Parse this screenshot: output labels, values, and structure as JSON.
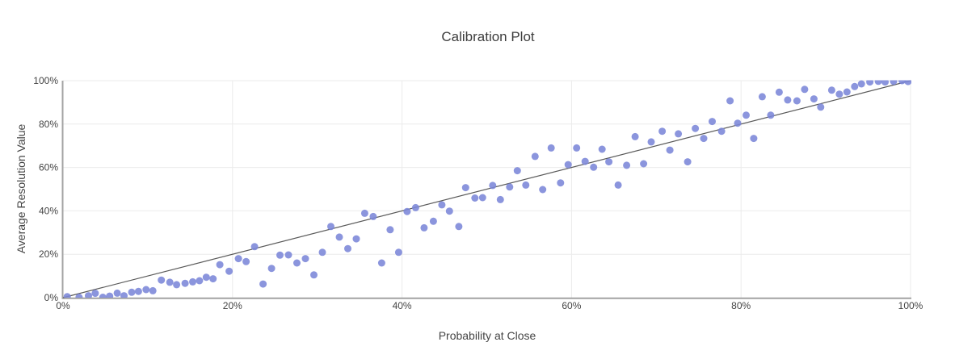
{
  "page": {
    "background": "#ffffff",
    "text_color": "#444444"
  },
  "chart_data": {
    "type": "scatter",
    "title": "Calibration Plot",
    "xlabel": "Probability at Close",
    "ylabel": "Average Resolution Value",
    "xlim": [
      0,
      100
    ],
    "ylim": [
      0,
      100
    ],
    "grid": true,
    "legend": "none",
    "x_ticks": {
      "values": [
        0,
        20,
        40,
        60,
        80,
        100
      ],
      "labels": [
        "0%",
        "20%",
        "40%",
        "60%",
        "80%",
        "100%"
      ]
    },
    "y_ticks": {
      "values": [
        0,
        20,
        40,
        60,
        80,
        100
      ],
      "labels": [
        "0%",
        "20%",
        "40%",
        "60%",
        "80%",
        "100%"
      ]
    },
    "colors": {
      "marker": "#7B86D8",
      "marker_opacity": 0.88,
      "reference_line": "#595959",
      "axis_line": "#a3a3a3",
      "gridline": "#ebebeb",
      "text": "#444444"
    },
    "marker_radius": 4.5,
    "reference_line": {
      "from": [
        0,
        0
      ],
      "to": [
        100,
        100
      ]
    },
    "points": [
      [
        0.5,
        0.5
      ],
      [
        1.9,
        0.2
      ],
      [
        3.0,
        0.9
      ],
      [
        3.8,
        2.0
      ],
      [
        4.7,
        0.2
      ],
      [
        5.5,
        0.7
      ],
      [
        6.4,
        2.1
      ],
      [
        7.2,
        0.9
      ],
      [
        8.1,
        2.5
      ],
      [
        8.9,
        2.9
      ],
      [
        9.8,
        3.7
      ],
      [
        10.6,
        3.2
      ],
      [
        11.6,
        8.1
      ],
      [
        12.6,
        7.1
      ],
      [
        13.4,
        6.0
      ],
      [
        14.4,
        6.6
      ],
      [
        15.3,
        7.3
      ],
      [
        16.1,
        7.8
      ],
      [
        16.9,
        9.4
      ],
      [
        17.7,
        8.7
      ],
      [
        18.5,
        15.2
      ],
      [
        19.6,
        12.2
      ],
      [
        20.7,
        18.0
      ],
      [
        21.6,
        16.6
      ],
      [
        22.6,
        23.5
      ],
      [
        23.6,
        6.3
      ],
      [
        24.6,
        13.5
      ],
      [
        25.6,
        19.6
      ],
      [
        26.6,
        19.7
      ],
      [
        27.6,
        16.0
      ],
      [
        28.6,
        18.0
      ],
      [
        29.6,
        10.5
      ],
      [
        30.6,
        20.9
      ],
      [
        31.6,
        32.8
      ],
      [
        32.6,
        27.9
      ],
      [
        33.6,
        22.6
      ],
      [
        34.6,
        27.1
      ],
      [
        35.6,
        38.9
      ],
      [
        36.6,
        37.4
      ],
      [
        37.6,
        16.0
      ],
      [
        38.6,
        31.3
      ],
      [
        39.6,
        20.9
      ],
      [
        40.6,
        39.7
      ],
      [
        41.6,
        41.5
      ],
      [
        42.6,
        32.2
      ],
      [
        43.7,
        35.2
      ],
      [
        44.7,
        42.8
      ],
      [
        45.6,
        39.9
      ],
      [
        46.7,
        32.8
      ],
      [
        47.5,
        50.7
      ],
      [
        48.6,
        45.9
      ],
      [
        49.5,
        46.1
      ],
      [
        50.7,
        51.7
      ],
      [
        51.6,
        45.2
      ],
      [
        52.7,
        51.0
      ],
      [
        53.6,
        58.5
      ],
      [
        54.6,
        51.9
      ],
      [
        55.7,
        65.1
      ],
      [
        56.6,
        49.8
      ],
      [
        57.6,
        69.0
      ],
      [
        58.7,
        52.9
      ],
      [
        59.6,
        61.3
      ],
      [
        60.6,
        69.0
      ],
      [
        61.6,
        62.8
      ],
      [
        62.6,
        60.1
      ],
      [
        63.6,
        68.4
      ],
      [
        64.4,
        62.6
      ],
      [
        65.5,
        51.9
      ],
      [
        66.5,
        61.0
      ],
      [
        67.5,
        74.2
      ],
      [
        68.5,
        61.7
      ],
      [
        69.4,
        71.8
      ],
      [
        70.7,
        76.7
      ],
      [
        71.6,
        68.0
      ],
      [
        72.6,
        75.5
      ],
      [
        73.7,
        62.6
      ],
      [
        74.6,
        78.0
      ],
      [
        75.6,
        73.4
      ],
      [
        76.6,
        81.2
      ],
      [
        77.7,
        76.7
      ],
      [
        78.7,
        90.7
      ],
      [
        79.6,
        80.4
      ],
      [
        80.6,
        84.1
      ],
      [
        81.5,
        73.4
      ],
      [
        82.5,
        92.6
      ],
      [
        83.5,
        84.1
      ],
      [
        84.5,
        94.7
      ],
      [
        85.5,
        91.1
      ],
      [
        86.6,
        90.7
      ],
      [
        87.5,
        96.0
      ],
      [
        88.6,
        91.6
      ],
      [
        89.4,
        87.8
      ],
      [
        90.7,
        95.6
      ],
      [
        91.6,
        93.8
      ],
      [
        92.5,
        94.8
      ],
      [
        93.4,
        97.3
      ],
      [
        94.2,
        98.5
      ],
      [
        95.2,
        99.4
      ],
      [
        96.2,
        99.7
      ],
      [
        97.0,
        99.4
      ],
      [
        98.0,
        99.7
      ],
      [
        99.0,
        100.0
      ],
      [
        99.7,
        99.6
      ]
    ]
  }
}
